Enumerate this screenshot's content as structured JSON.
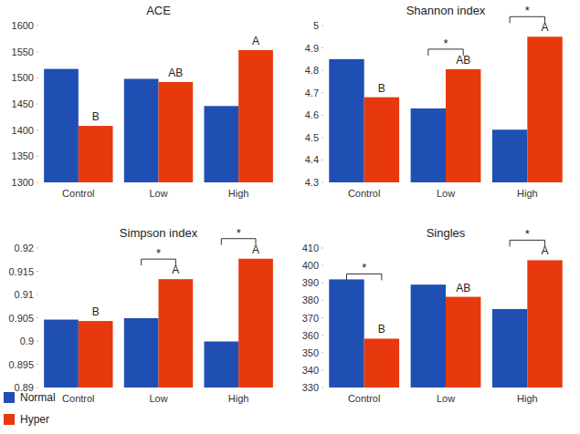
{
  "chart_data": [
    {
      "type": "bar",
      "title": "ACE",
      "categories": [
        "Control",
        "Low",
        "High"
      ],
      "series": [
        {
          "name": "Normal",
          "color": "#1f4fb2",
          "values": [
            1517,
            1498,
            1446
          ]
        },
        {
          "name": "Hyper",
          "color": "#e8380d",
          "values": [
            1408,
            1492,
            1553
          ]
        }
      ],
      "ylim": [
        1300,
        1600
      ],
      "yticks": [
        1300,
        1350,
        1400,
        1450,
        1500,
        1550,
        1600
      ],
      "letters": [
        "B",
        "AB",
        "A"
      ],
      "significance": [
        null,
        null,
        null
      ],
      "legend": "bottom-left"
    },
    {
      "type": "bar",
      "title": "Shannon index",
      "categories": [
        "Control",
        "Low",
        "High"
      ],
      "series": [
        {
          "name": "Normal",
          "color": "#1f4fb2",
          "values": [
            4.85,
            4.63,
            4.535
          ]
        },
        {
          "name": "Hyper",
          "color": "#e8380d",
          "values": [
            4.68,
            4.805,
            4.95
          ]
        }
      ],
      "ylim": [
        4.3,
        5
      ],
      "yticks": [
        4.3,
        4.4,
        4.5,
        4.6,
        4.7,
        4.8,
        4.9,
        5
      ],
      "letters": [
        "B",
        "AB",
        "A"
      ],
      "significance": [
        null,
        "*",
        "*"
      ]
    },
    {
      "type": "bar",
      "title": "Simpson index",
      "categories": [
        "Control",
        "Low",
        "High"
      ],
      "series": [
        {
          "name": "Normal",
          "color": "#1f4fb2",
          "values": [
            0.9046,
            0.9049,
            0.8999
          ]
        },
        {
          "name": "Hyper",
          "color": "#e8380d",
          "values": [
            0.9043,
            0.9133,
            0.9177
          ]
        }
      ],
      "ylim": [
        0.89,
        0.92
      ],
      "yticks": [
        0.89,
        0.895,
        0.9,
        0.905,
        0.91,
        0.915,
        0.92
      ],
      "letters": [
        "B",
        "A",
        "A"
      ],
      "significance": [
        null,
        "*",
        "*"
      ]
    },
    {
      "type": "bar",
      "title": "Singles",
      "categories": [
        "Control",
        "Low",
        "High"
      ],
      "series": [
        {
          "name": "Normal",
          "color": "#1f4fb2",
          "values": [
            392,
            389,
            375
          ]
        },
        {
          "name": "Hyper",
          "color": "#e8380d",
          "values": [
            358,
            382,
            403
          ]
        }
      ],
      "ylim": [
        330,
        410
      ],
      "yticks": [
        330,
        340,
        350,
        360,
        370,
        380,
        390,
        400,
        410
      ],
      "letters": [
        "B",
        "AB",
        "A"
      ],
      "significance": [
        "*",
        null,
        "*"
      ]
    }
  ]
}
